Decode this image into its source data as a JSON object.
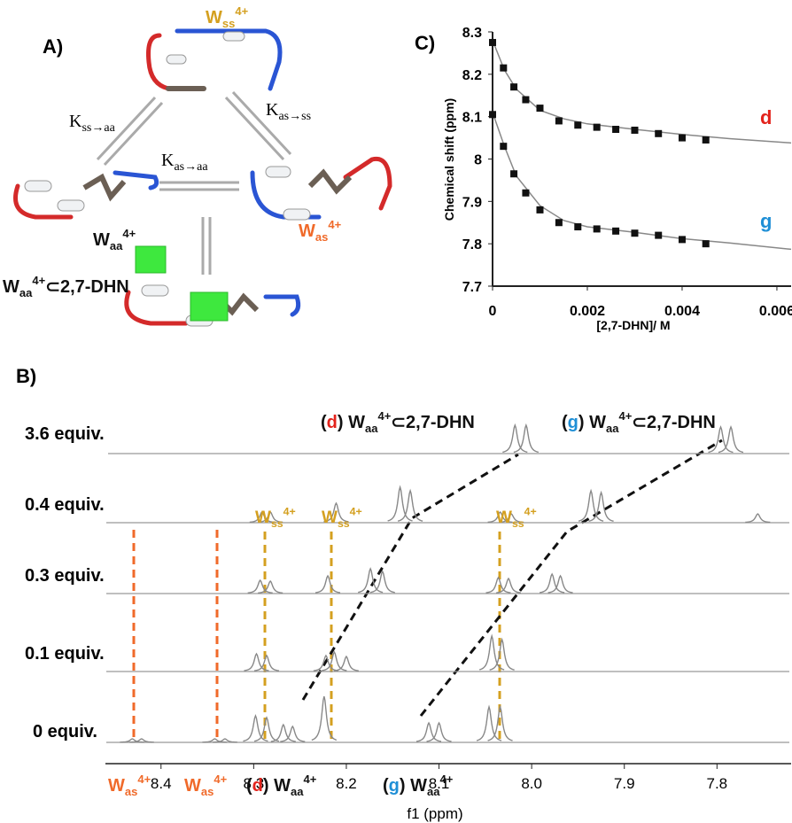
{
  "diagram": {
    "panel_label": "A)",
    "species": {
      "ss": {
        "base": "W",
        "sub": "ss",
        "sup": "4+"
      },
      "aa": {
        "base": "W",
        "sub": "aa",
        "sup": "4+"
      },
      "as": {
        "base": "W",
        "sub": "as",
        "sup": "4+"
      },
      "complex": {
        "base": "W",
        "sub": "aa",
        "sup": "4+",
        "rest": "⊂2,7-DHN"
      }
    },
    "constants": [
      {
        "base": "K",
        "sub": "ss→aa"
      },
      {
        "base": "K",
        "sub": "as→ss"
      },
      {
        "base": "K",
        "sub": "as→aa"
      }
    ]
  },
  "chart_data": [
    {
      "type": "scatter",
      "panel_label": "C)",
      "x_label": "[2,7-DHN]/ M",
      "y_label": "Chemical shift (ppm)",
      "xlim": [
        0,
        0.0063
      ],
      "ylim": [
        7.7,
        8.3
      ],
      "xticks": [
        0,
        0.002,
        0.004,
        0.006
      ],
      "yticks": [
        7.7,
        7.8,
        7.9,
        8,
        8.1,
        8.2,
        8.3
      ],
      "series": [
        {
          "name": "d",
          "color": "#e3231c",
          "x": [
            0,
            0.00023,
            0.00045,
            0.0007,
            0.001,
            0.0014,
            0.0018,
            0.0022,
            0.0026,
            0.003,
            0.0035,
            0.004,
            0.0045
          ],
          "values": [
            8.275,
            8.215,
            8.17,
            8.14,
            8.12,
            8.09,
            8.08,
            8.075,
            8.07,
            8.068,
            8.06,
            8.05,
            8.045
          ]
        },
        {
          "name": "g",
          "color": "#1f8fd6",
          "x": [
            0,
            0.00023,
            0.00045,
            0.0007,
            0.001,
            0.0014,
            0.0018,
            0.0022,
            0.0026,
            0.003,
            0.0035,
            0.004,
            0.0045
          ],
          "values": [
            8.105,
            8.03,
            7.965,
            7.92,
            7.88,
            7.85,
            7.84,
            7.835,
            7.83,
            7.825,
            7.82,
            7.81,
            7.8
          ]
        }
      ],
      "fits": [
        {
          "color": "#888888",
          "x": [
            0,
            0.00025,
            0.0005,
            0.001,
            0.0015,
            0.002,
            0.003,
            0.004,
            0.005,
            0.0063
          ],
          "values": [
            8.28,
            8.21,
            8.165,
            8.115,
            8.095,
            8.083,
            8.07,
            8.058,
            8.048,
            8.038
          ]
        },
        {
          "color": "#888888",
          "x": [
            0,
            0.00025,
            0.0005,
            0.001,
            0.0015,
            0.002,
            0.003,
            0.004,
            0.005,
            0.0063
          ],
          "values": [
            8.11,
            8.03,
            7.96,
            7.89,
            7.855,
            7.84,
            7.827,
            7.812,
            7.802,
            7.787
          ]
        }
      ]
    },
    {
      "type": "spectra",
      "panel_label": "B)",
      "x_label": "f1 (ppm)",
      "xlim": [
        8.46,
        7.72
      ],
      "xticks": [
        8.4,
        8.3,
        8.2,
        8.1,
        {
          "value": 8,
          "label": "8.0"
        },
        7.9,
        7.8
      ],
      "traces": [
        {
          "name": "3.6 equiv.",
          "peaks_x": [
            8.018,
            8.006,
            7.796,
            7.785
          ],
          "peaks_intensity": [
            32,
            32,
            30,
            30
          ]
        },
        {
          "name": "0.4 equiv.",
          "peaks_x": [
            8.291,
            8.282,
            8.211,
            8.142,
            8.131,
            8.034,
            8.022,
            7.936,
            7.925,
            7.756
          ],
          "peaks_intensity": [
            12,
            12,
            22,
            40,
            36,
            12,
            10,
            36,
            34,
            10
          ]
        },
        {
          "name": "0.3 equiv.",
          "peaks_x": [
            8.293,
            8.282,
            8.22,
            8.174,
            8.161,
            8.036,
            8.025,
            7.978,
            7.969
          ],
          "peaks_intensity": [
            15,
            14,
            20,
            28,
            25,
            18,
            17,
            22,
            20
          ]
        },
        {
          "name": "0.1 equiv.",
          "peaks_x": [
            8.297,
            8.286,
            8.222,
            8.213,
            8.2,
            8.043,
            8.032
          ],
          "peaks_intensity": [
            20,
            18,
            18,
            22,
            17,
            40,
            36
          ]
        },
        {
          "name": "0 equiv.",
          "peaks_x": [
            8.431,
            8.421,
            8.342,
            8.331,
            8.298,
            8.286,
            8.268,
            8.258,
            8.224,
            8.111,
            8.1,
            8.046,
            8.034
          ],
          "peaks_intensity": [
            4,
            4,
            4,
            4,
            30,
            28,
            20,
            18,
            52,
            22,
            22,
            40,
            40
          ]
        }
      ],
      "top_labels": [
        {
          "tag": "d",
          "base": "W",
          "sub": "aa",
          "sup": "4+",
          "rest": "⊂2,7-DHN"
        },
        {
          "tag": "g",
          "base": "W",
          "sub": "aa",
          "sup": "4+",
          "rest": "⊂2,7-DHN"
        }
      ],
      "bottom_labels": [
        {
          "base": "W",
          "sub": "as",
          "sup": "4+"
        },
        {
          "base": "W",
          "sub": "as",
          "sup": "4+"
        },
        {
          "tag": "d",
          "base": "W",
          "sub": "aa",
          "sup": "4+"
        },
        {
          "tag": "g",
          "base": "W",
          "sub": "aa",
          "sup": "4+"
        }
      ],
      "peak_labels": [
        {
          "base": "W",
          "sub": "ss",
          "sup": "4+"
        },
        {
          "base": "W",
          "sub": "ss",
          "sup": "4+"
        },
        {
          "base": "W",
          "sub": "ss",
          "sup": "4+"
        }
      ]
    }
  ]
}
